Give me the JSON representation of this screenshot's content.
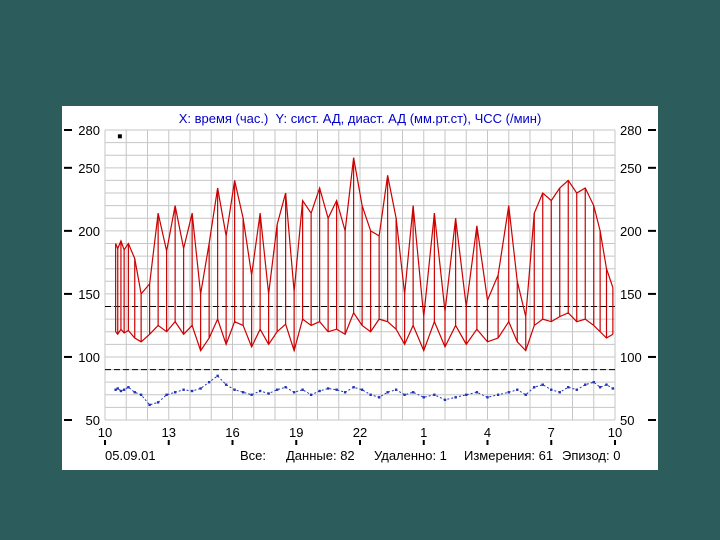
{
  "window": {
    "background_color": "#2d5c5c",
    "panel_color": "#ffffff"
  },
  "chart_title": "X: время (час.)  Y: сист. АД, диаст. АД (мм.рт.ст), ЧСС (/мин)",
  "status": {
    "date": "05.09.01",
    "all": "Все:",
    "data": "Данные: 82",
    "removed": "Удаленно: 1",
    "measurements": "Измерения: 61",
    "episode": "Эпизод: 0"
  },
  "chart_data": {
    "type": "line",
    "title": "X: время (час.)  Y: сист. АД, диаст. АД (мм.рт.ст), ЧСС (/мин)",
    "xlabel": "время (час.)",
    "ylabel": "сист. АД, диаст. АД (мм.рт.ст), ЧСС (/мин)",
    "x_range": [
      10,
      34
    ],
    "y_range": [
      50,
      280
    ],
    "y_ticks": [
      280,
      250,
      200,
      150,
      100,
      50
    ],
    "x_tick_labels": [
      "10",
      "13",
      "16",
      "19",
      "22",
      "1",
      "4",
      "7",
      "10"
    ],
    "x_tick_positions": [
      10,
      13,
      16,
      19,
      22,
      25,
      28,
      31,
      34
    ],
    "grid": {
      "x_step": 1,
      "y_step": 10,
      "visible": true
    },
    "reference_lines": [
      140,
      90
    ],
    "colors": {
      "grid": "#c6c6c6",
      "reference": "#000000",
      "systolic_diastolic": "#cc0000",
      "heart_rate": "#2233bb",
      "title": "#0000cc",
      "axis_text": "#000000"
    },
    "series": [
      {
        "name": "сист. АД",
        "color": "#cc0000"
      },
      {
        "name": "диаст. АД",
        "color": "#cc0000"
      },
      {
        "name": "ЧСС",
        "color": "#2233bb"
      }
    ],
    "measurement_columns": [
      "hour",
      "systolic",
      "diastolic",
      "heart_rate"
    ],
    "measurements": [
      [
        10.5,
        190,
        120,
        74
      ],
      [
        10.6,
        186,
        118,
        75
      ],
      [
        10.75,
        192,
        122,
        73
      ],
      [
        10.9,
        185,
        119,
        74
      ],
      [
        11.1,
        190,
        121,
        76
      ],
      [
        11.4,
        178,
        115,
        72
      ],
      [
        11.7,
        150,
        112,
        70
      ],
      [
        12.1,
        158,
        118,
        62
      ],
      [
        12.5,
        214,
        125,
        64
      ],
      [
        12.9,
        184,
        120,
        70
      ],
      [
        13.3,
        220,
        128,
        72
      ],
      [
        13.7,
        186,
        118,
        74
      ],
      [
        14.1,
        214,
        125,
        73
      ],
      [
        14.5,
        150,
        105,
        75
      ],
      [
        14.9,
        190,
        115,
        80
      ],
      [
        15.3,
        234,
        130,
        85
      ],
      [
        15.7,
        196,
        110,
        78
      ],
      [
        16.1,
        240,
        128,
        74
      ],
      [
        16.5,
        210,
        125,
        72
      ],
      [
        16.9,
        165,
        108,
        70
      ],
      [
        17.3,
        214,
        122,
        73
      ],
      [
        17.7,
        150,
        110,
        71
      ],
      [
        18.1,
        205,
        120,
        74
      ],
      [
        18.5,
        230,
        126,
        76
      ],
      [
        18.9,
        152,
        105,
        72
      ],
      [
        19.3,
        224,
        130,
        74
      ],
      [
        19.7,
        214,
        125,
        70
      ],
      [
        20.1,
        234,
        128,
        73
      ],
      [
        20.5,
        210,
        120,
        75
      ],
      [
        20.9,
        224,
        122,
        74
      ],
      [
        21.3,
        200,
        118,
        72
      ],
      [
        21.7,
        258,
        135,
        76
      ],
      [
        22.1,
        220,
        125,
        74
      ],
      [
        22.5,
        200,
        120,
        70
      ],
      [
        22.9,
        196,
        130,
        68
      ],
      [
        23.3,
        244,
        128,
        72
      ],
      [
        23.7,
        210,
        122,
        74
      ],
      [
        24.1,
        150,
        110,
        70
      ],
      [
        24.5,
        220,
        125,
        72
      ],
      [
        25.0,
        132,
        105,
        68
      ],
      [
        25.5,
        214,
        128,
        70
      ],
      [
        26.0,
        136,
        108,
        66
      ],
      [
        26.5,
        210,
        125,
        68
      ],
      [
        27.0,
        140,
        110,
        70
      ],
      [
        27.5,
        204,
        122,
        72
      ],
      [
        28.0,
        145,
        112,
        68
      ],
      [
        28.5,
        165,
        115,
        70
      ],
      [
        29.0,
        220,
        128,
        72
      ],
      [
        29.4,
        160,
        112,
        74
      ],
      [
        29.8,
        132,
        105,
        70
      ],
      [
        30.2,
        214,
        125,
        76
      ],
      [
        30.6,
        230,
        130,
        78
      ],
      [
        31.0,
        224,
        128,
        74
      ],
      [
        31.4,
        234,
        132,
        72
      ],
      [
        31.8,
        240,
        135,
        76
      ],
      [
        32.2,
        230,
        128,
        74
      ],
      [
        32.6,
        234,
        130,
        78
      ],
      [
        33.0,
        220,
        125,
        80
      ],
      [
        33.3,
        200,
        120,
        76
      ],
      [
        33.6,
        170,
        115,
        78
      ],
      [
        33.9,
        155,
        118,
        75
      ]
    ],
    "deleted_points": [
      [
        10.7,
        275
      ]
    ]
  }
}
